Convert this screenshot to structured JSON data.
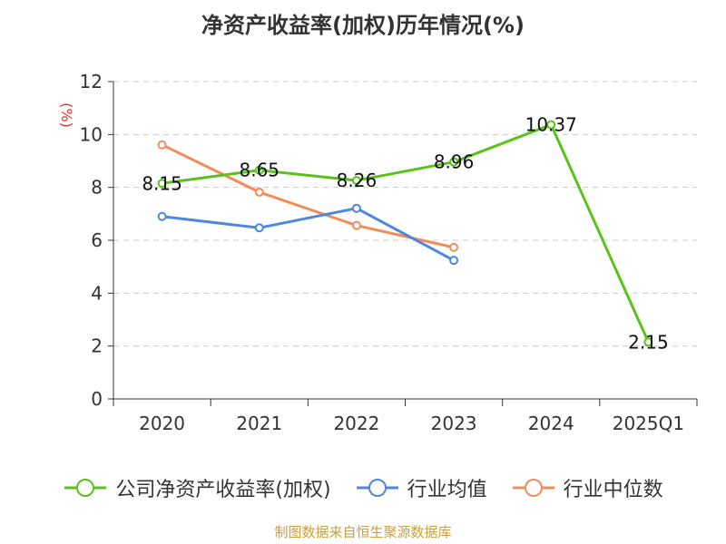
{
  "chart_data": {
    "type": "line",
    "title": "净资产收益率(加权)历年情况(%)",
    "ylabel": "(%)",
    "xlabel": "",
    "categories": [
      "2020",
      "2021",
      "2022",
      "2023",
      "2024",
      "2025Q1"
    ],
    "ylim": [
      0,
      12
    ],
    "yticks": [
      0,
      2,
      4,
      6,
      8,
      10,
      12
    ],
    "grid": true,
    "legend_position": "bottom",
    "series": [
      {
        "name": "公司净资产收益率(加权)",
        "color": "#5ac21a",
        "values": [
          8.15,
          8.65,
          8.26,
          8.96,
          10.37,
          2.15
        ],
        "labels": [
          "8.15",
          "8.65",
          "8.26",
          "8.96",
          "10.37",
          "2.15"
        ]
      },
      {
        "name": "行业均值",
        "color": "#4f86e0",
        "values": [
          6.9,
          6.47,
          7.21,
          5.24,
          null,
          null
        ]
      },
      {
        "name": "行业中位数",
        "color": "#f28c5a",
        "values": [
          9.61,
          7.82,
          6.56,
          5.73,
          null,
          null
        ]
      }
    ]
  },
  "source": "制图数据来自恒生聚源数据库",
  "colors": {
    "ylabel": "#e03030",
    "source": "#c8a040",
    "axis": "#333333",
    "grid": "#cccccc"
  }
}
